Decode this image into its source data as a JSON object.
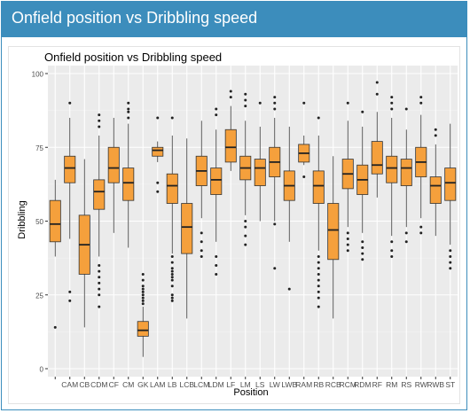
{
  "panel": {
    "title": "Onfield position vs Dribbling speed",
    "accent": "#3c8dbc"
  },
  "chart_data": {
    "type": "boxplot",
    "title": "Onfield position vs Dribbling speed",
    "xlabel": "Position",
    "ylabel": "Dribbling",
    "ylim": [
      0,
      100
    ],
    "yticks": [
      0,
      25,
      50,
      75,
      100
    ],
    "grid": true,
    "fill_color": "#f5a03c",
    "panel_color": "#ebebeb",
    "categories": [
      "",
      "CAM",
      "CB",
      "CDM",
      "CF",
      "CM",
      "GK",
      "LAM",
      "LB",
      "LCB",
      "LCM",
      "LDM",
      "LF",
      "LM",
      "LS",
      "LW",
      "LWB",
      "RAM",
      "RB",
      "RCB",
      "RCM",
      "RDM",
      "RF",
      "RM",
      "RS",
      "RW",
      "RWB",
      "ST"
    ],
    "boxes": [
      {
        "category": "",
        "min": 38,
        "q1": 43,
        "median": 49,
        "q3": 57,
        "max": 64,
        "outliers": [
          14
        ]
      },
      {
        "category": "CAM",
        "min": 44,
        "q1": 63,
        "median": 68,
        "q3": 72,
        "max": 85,
        "outliers": [
          90,
          23,
          26
        ]
      },
      {
        "category": "CB",
        "min": 14,
        "q1": 32,
        "median": 42,
        "q3": 52,
        "max": 71,
        "outliers": []
      },
      {
        "category": "CDM",
        "min": 38,
        "q1": 54,
        "median": 60,
        "q3": 64,
        "max": 79,
        "outliers": [
          86,
          84,
          82,
          35,
          33,
          31,
          29,
          27,
          25,
          21
        ]
      },
      {
        "category": "CF",
        "min": 46,
        "q1": 63,
        "median": 68,
        "q3": 75,
        "max": 85,
        "outliers": []
      },
      {
        "category": "CM",
        "min": 41,
        "q1": 57,
        "median": 63,
        "q3": 68,
        "max": 83,
        "outliers": [
          90,
          88,
          87,
          85
        ]
      },
      {
        "category": "GK",
        "min": 4,
        "q1": 11,
        "median": 13,
        "q3": 16,
        "max": 21,
        "outliers": [
          32,
          30,
          28,
          27,
          26,
          25,
          24,
          23,
          22
        ]
      },
      {
        "category": "LAM",
        "min": 70,
        "q1": 72,
        "median": 74,
        "q3": 75,
        "max": 77,
        "outliers": [
          85,
          63,
          60
        ]
      },
      {
        "category": "LB",
        "min": 39,
        "q1": 56,
        "median": 62,
        "q3": 66,
        "max": 79,
        "outliers": [
          85,
          38,
          36,
          34,
          33,
          32,
          31,
          30,
          28,
          25,
          24,
          23
        ]
      },
      {
        "category": "LCB",
        "min": 17,
        "q1": 39,
        "median": 48,
        "q3": 56,
        "max": 78,
        "outliers": []
      },
      {
        "category": "LCM",
        "min": 51,
        "q1": 62,
        "median": 67,
        "q3": 72,
        "max": 84,
        "outliers": [
          46,
          43,
          40,
          38
        ]
      },
      {
        "category": "LDM",
        "min": 43,
        "q1": 59,
        "median": 64,
        "q3": 68,
        "max": 81,
        "outliers": [
          88,
          86,
          38,
          35,
          32
        ]
      },
      {
        "category": "LF",
        "min": 67,
        "q1": 70,
        "median": 75,
        "q3": 81,
        "max": 89,
        "outliers": [
          94,
          92
        ]
      },
      {
        "category": "LM",
        "min": 52,
        "q1": 64,
        "median": 68,
        "q3": 72,
        "max": 84,
        "outliers": [
          93,
          91,
          89,
          50,
          48,
          45,
          42
        ]
      },
      {
        "category": "LS",
        "min": 50,
        "q1": 62,
        "median": 68,
        "q3": 71,
        "max": 82,
        "outliers": [
          90
        ]
      },
      {
        "category": "LW",
        "min": 50,
        "q1": 65,
        "median": 70,
        "q3": 75,
        "max": 85,
        "outliers": [
          92,
          90,
          88,
          49,
          34
        ]
      },
      {
        "category": "LWB",
        "min": 43,
        "q1": 57,
        "median": 62,
        "q3": 67,
        "max": 82,
        "outliers": [
          27
        ]
      },
      {
        "category": "RAM",
        "min": 69,
        "q1": 70,
        "median": 73,
        "q3": 76,
        "max": 79,
        "outliers": [
          90,
          65
        ]
      },
      {
        "category": "RB",
        "min": 40,
        "q1": 56,
        "median": 62,
        "q3": 67,
        "max": 79,
        "outliers": [
          85,
          38,
          36,
          34,
          32,
          30,
          28,
          26,
          24,
          21
        ]
      },
      {
        "category": "RCB",
        "min": 17,
        "q1": 37,
        "median": 47,
        "q3": 56,
        "max": 72,
        "outliers": []
      },
      {
        "category": "RCM",
        "min": 48,
        "q1": 61,
        "median": 66,
        "q3": 71,
        "max": 84,
        "outliers": [
          90,
          46,
          44,
          42,
          40
        ]
      },
      {
        "category": "RDM",
        "min": 46,
        "q1": 59,
        "median": 64,
        "q3": 69,
        "max": 82,
        "outliers": [
          87,
          43,
          41,
          39,
          37
        ]
      },
      {
        "category": "RF",
        "min": 58,
        "q1": 66,
        "median": 69,
        "q3": 77,
        "max": 87,
        "outliers": [
          97,
          93
        ]
      },
      {
        "category": "RM",
        "min": 45,
        "q1": 63,
        "median": 68,
        "q3": 72,
        "max": 85,
        "outliers": [
          92,
          90,
          88,
          43,
          40,
          38
        ]
      },
      {
        "category": "RS",
        "min": 48,
        "q1": 62,
        "median": 68,
        "q3": 71,
        "max": 81,
        "outliers": [
          88,
          46,
          43
        ]
      },
      {
        "category": "RW",
        "min": 51,
        "q1": 65,
        "median": 70,
        "q3": 75,
        "max": 86,
        "outliers": [
          92,
          90,
          48,
          46
        ]
      },
      {
        "category": "RWB",
        "min": 45,
        "q1": 56,
        "median": 62,
        "q3": 65,
        "max": 76,
        "outliers": [
          81,
          79
        ]
      },
      {
        "category": "ST",
        "min": 42,
        "q1": 57,
        "median": 63,
        "q3": 68,
        "max": 83,
        "outliers": [
          40,
          38,
          36,
          34
        ]
      }
    ]
  }
}
